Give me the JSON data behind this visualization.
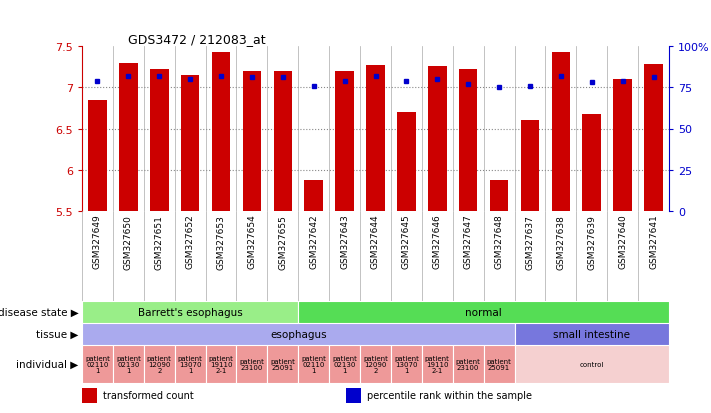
{
  "title": "GDS3472 / 212083_at",
  "samples": [
    "GSM327649",
    "GSM327650",
    "GSM327651",
    "GSM327652",
    "GSM327653",
    "GSM327654",
    "GSM327655",
    "GSM327642",
    "GSM327643",
    "GSM327644",
    "GSM327645",
    "GSM327646",
    "GSM327647",
    "GSM327648",
    "GSM327637",
    "GSM327638",
    "GSM327639",
    "GSM327640",
    "GSM327641"
  ],
  "bar_values": [
    6.85,
    7.3,
    7.22,
    7.15,
    7.43,
    7.2,
    7.2,
    5.88,
    7.2,
    7.27,
    6.7,
    7.26,
    7.22,
    5.88,
    6.6,
    7.43,
    6.67,
    7.1,
    7.28
  ],
  "dot_values": [
    79,
    82,
    82,
    80,
    82,
    81,
    81,
    76,
    79,
    82,
    79,
    80,
    77,
    75,
    76,
    82,
    78,
    79,
    81
  ],
  "ylim_left": [
    5.5,
    7.5
  ],
  "yticks_left": [
    5.5,
    6.0,
    6.5,
    7.0,
    7.5
  ],
  "ytick_labels_left": [
    "5.5",
    "6",
    "6.5",
    "7",
    "7.5"
  ],
  "yticks_right": [
    0,
    25,
    50,
    75,
    100
  ],
  "ytick_labels_right": [
    "0",
    "25",
    "50",
    "75",
    "100%"
  ],
  "bar_color": "#cc0000",
  "dot_color": "#0000cc",
  "bar_base": 5.5,
  "grid_hlines": [
    6.0,
    6.5,
    7.0
  ],
  "disease_state_groups": [
    {
      "label": "Barrett's esophagus",
      "start": 0,
      "end": 7,
      "color": "#99ee88"
    },
    {
      "label": "normal",
      "start": 7,
      "end": 19,
      "color": "#55dd55"
    }
  ],
  "tissue_groups": [
    {
      "label": "esophagus",
      "start": 0,
      "end": 14,
      "color": "#aaaaee"
    },
    {
      "label": "small intestine",
      "start": 14,
      "end": 19,
      "color": "#7777dd"
    }
  ],
  "individual_groups": [
    {
      "label": "patient\n02110\n1",
      "start": 0,
      "end": 1,
      "color": "#ee9999"
    },
    {
      "label": "patient\n02130\n1",
      "start": 1,
      "end": 2,
      "color": "#ee9999"
    },
    {
      "label": "patient\n12090\n2",
      "start": 2,
      "end": 3,
      "color": "#ee9999"
    },
    {
      "label": "patient\n13070\n1",
      "start": 3,
      "end": 4,
      "color": "#ee9999"
    },
    {
      "label": "patient\n19110\n2-1",
      "start": 4,
      "end": 5,
      "color": "#ee9999"
    },
    {
      "label": "patient\n23100",
      "start": 5,
      "end": 6,
      "color": "#ee9999"
    },
    {
      "label": "patient\n25091",
      "start": 6,
      "end": 7,
      "color": "#ee9999"
    },
    {
      "label": "patient\n02110\n1",
      "start": 7,
      "end": 8,
      "color": "#ee9999"
    },
    {
      "label": "patient\n02130\n1",
      "start": 8,
      "end": 9,
      "color": "#ee9999"
    },
    {
      "label": "patient\n12090\n2",
      "start": 9,
      "end": 10,
      "color": "#ee9999"
    },
    {
      "label": "patient\n13070\n1",
      "start": 10,
      "end": 11,
      "color": "#ee9999"
    },
    {
      "label": "patient\n19110\n2-1",
      "start": 11,
      "end": 12,
      "color": "#ee9999"
    },
    {
      "label": "patient\n23100",
      "start": 12,
      "end": 13,
      "color": "#ee9999"
    },
    {
      "label": "patient\n25091",
      "start": 13,
      "end": 14,
      "color": "#ee9999"
    },
    {
      "label": "control",
      "start": 14,
      "end": 19,
      "color": "#f5d0d0"
    }
  ],
  "legend_items": [
    {
      "color": "#cc0000",
      "label": "transformed count"
    },
    {
      "color": "#0000cc",
      "label": "percentile rank within the sample"
    }
  ],
  "bg_color": "#ffffff",
  "axis_left_color": "#cc0000",
  "axis_right_color": "#0000cc"
}
